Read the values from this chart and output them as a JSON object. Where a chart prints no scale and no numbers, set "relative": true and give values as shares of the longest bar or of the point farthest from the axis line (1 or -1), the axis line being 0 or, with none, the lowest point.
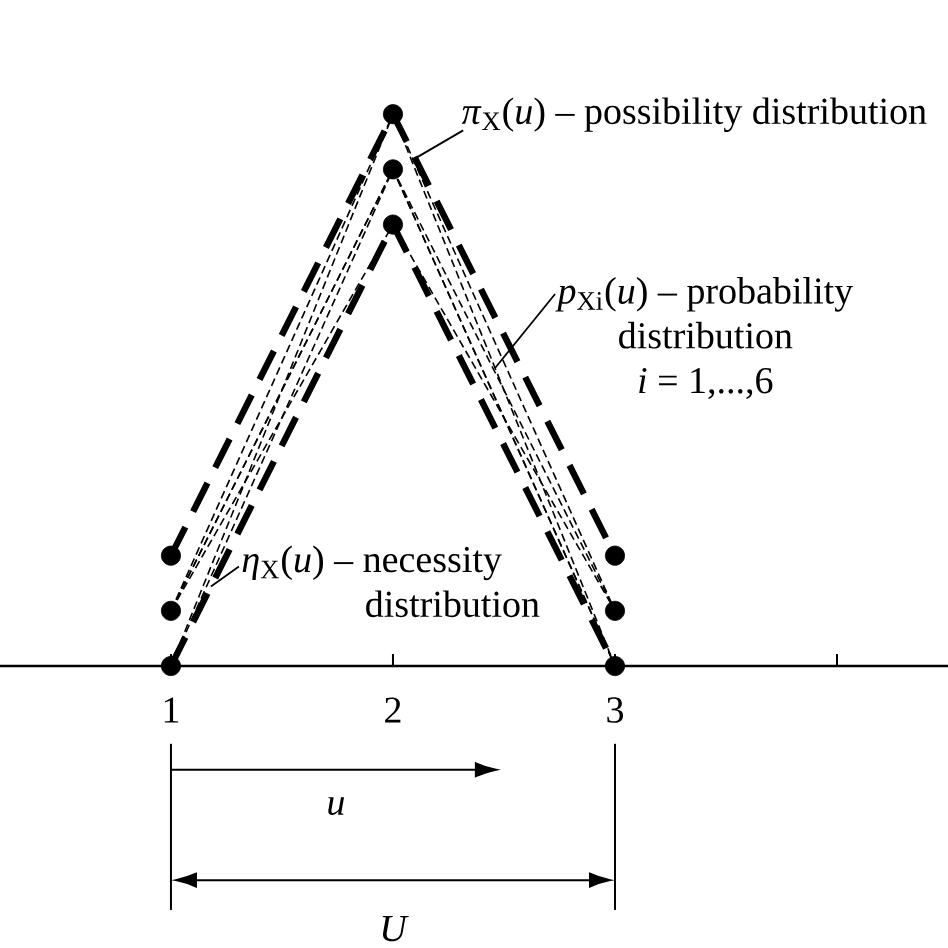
{
  "chart_data": {
    "type": "line",
    "relative": true,
    "x": [
      1,
      2,
      3
    ],
    "xlim": [
      0.23,
      4.5
    ],
    "xticks": [
      1,
      2,
      3,
      {
        "value": 4,
        "label": null
      }
    ],
    "line_style": "dashed",
    "series": [
      {
        "color": "#000000",
        "values": [
          0.2,
          1,
          0.2
        ],
        "marker": "circle"
      },
      {
        "color": "#000000",
        "values": [
          0,
          0.8,
          0
        ],
        "marker": "circle"
      },
      {
        "color": "#000000",
        "values": [
          0.1,
          0.9,
          0.1
        ],
        "marker": "circle"
      },
      {
        "color": "#000000",
        "values": [
          0,
          1,
          0
        ]
      },
      {
        "color": "#000000",
        "values": [
          0.1,
          1,
          0.1
        ]
      },
      {
        "color": "#000000",
        "values": [
          0,
          0.9,
          0
        ]
      },
      {
        "color": "#000000",
        "values": [
          0.1,
          0.8,
          0.1
        ]
      },
      {
        "color": "#000000",
        "values": [
          0.1,
          0.9,
          0
        ]
      }
    ],
    "annotations": [
      "u",
      "U",
      {
        "text": "*π*$_{X}$(*u*) – possibility distribution",
        "x": 2.1,
        "y": 0.92
      },
      {
        "text": "*p*$_{Xi}$(*u*) – probability",
        "x": 2.46,
        "y": 0.54
      },
      "distribution",
      "*i* = 1,...,6",
      {
        "text": "*η*$_{X}$(*u*) – necessity",
        "x": 1.18,
        "y": 0.144
      },
      "distribution"
    ]
  }
}
